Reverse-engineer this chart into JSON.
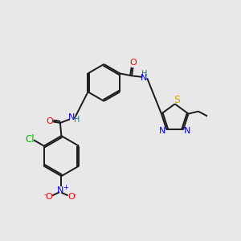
{
  "bg_color": "#e8e8e8",
  "bond_color": "#1a1a1a",
  "atom_colors": {
    "O": "#ff0000",
    "N": "#0000ff",
    "S": "#ccaa00",
    "Cl": "#00bb00",
    "C": "#1a1a1a",
    "H": "#008080"
  },
  "font_size": 8,
  "line_width": 1.4
}
